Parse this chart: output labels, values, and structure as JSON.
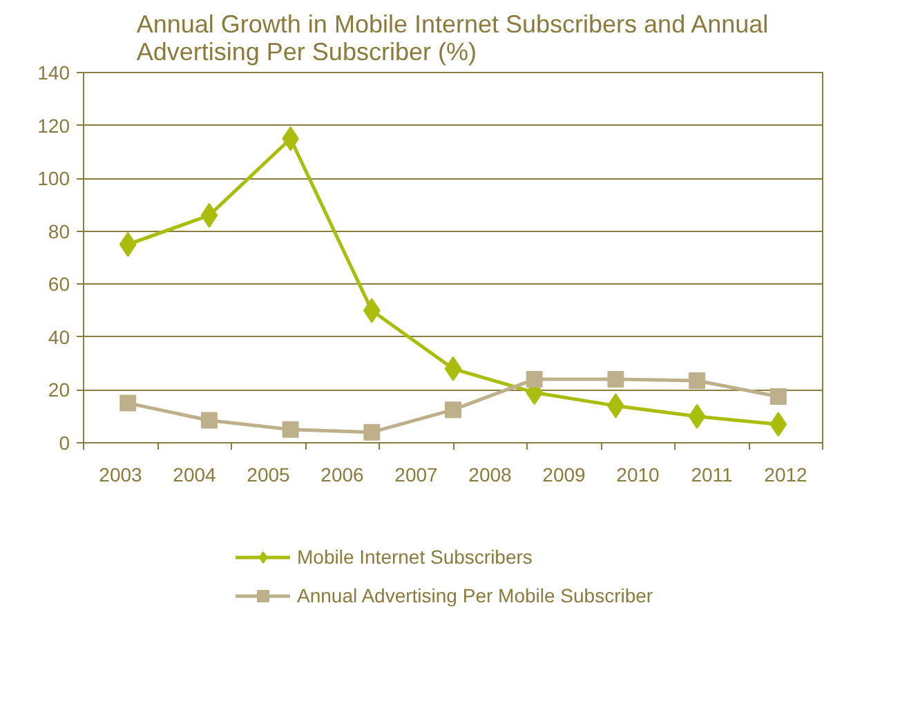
{
  "chart_data": {
    "type": "line",
    "title": "Annual Growth in Mobile Internet Subscribers and Annual\nAdvertising Per Subscriber (%)",
    "x": [
      2003.1,
      2004.2,
      2005.3,
      2006.4,
      2007.5,
      2008.6,
      2009.7,
      2010.8,
      2011.9
    ],
    "xlim": [
      2002.5,
      2012.5
    ],
    "xticks": [
      {
        "value": 2002.5,
        "label": null
      },
      2003,
      {
        "value": 2003.5,
        "label": null
      },
      2004,
      {
        "value": 2004.5,
        "label": null
      },
      2005,
      {
        "value": 2005.5,
        "label": null
      },
      2006,
      {
        "value": 2006.5,
        "label": null
      },
      2007,
      {
        "value": 2007.5,
        "label": null
      },
      2008,
      {
        "value": 2008.5,
        "label": null
      },
      2009,
      {
        "value": 2009.5,
        "label": null
      },
      2010,
      {
        "value": 2010.5,
        "label": null
      },
      2011,
      {
        "value": 2011.5,
        "label": null
      },
      2012,
      {
        "value": 2012.5,
        "label": null
      }
    ],
    "ylim": [
      0,
      140
    ],
    "yticks": [
      0,
      20,
      40,
      60,
      80,
      100,
      120,
      140
    ],
    "grid": "y",
    "legend": "bottom",
    "series": [
      {
        "name": "Mobile Internet Subscribers",
        "color": "#a9be0c",
        "marker": "diamond",
        "values": [
          75,
          86,
          115,
          50,
          28,
          19,
          14,
          10,
          7
        ]
      },
      {
        "name": "Annual Advertising Per Mobile Subscriber",
        "color": "#bfb08c",
        "marker": "square",
        "values": [
          15,
          8.5,
          5,
          4,
          12.5,
          24,
          24,
          23.5,
          17.5
        ]
      }
    ]
  }
}
